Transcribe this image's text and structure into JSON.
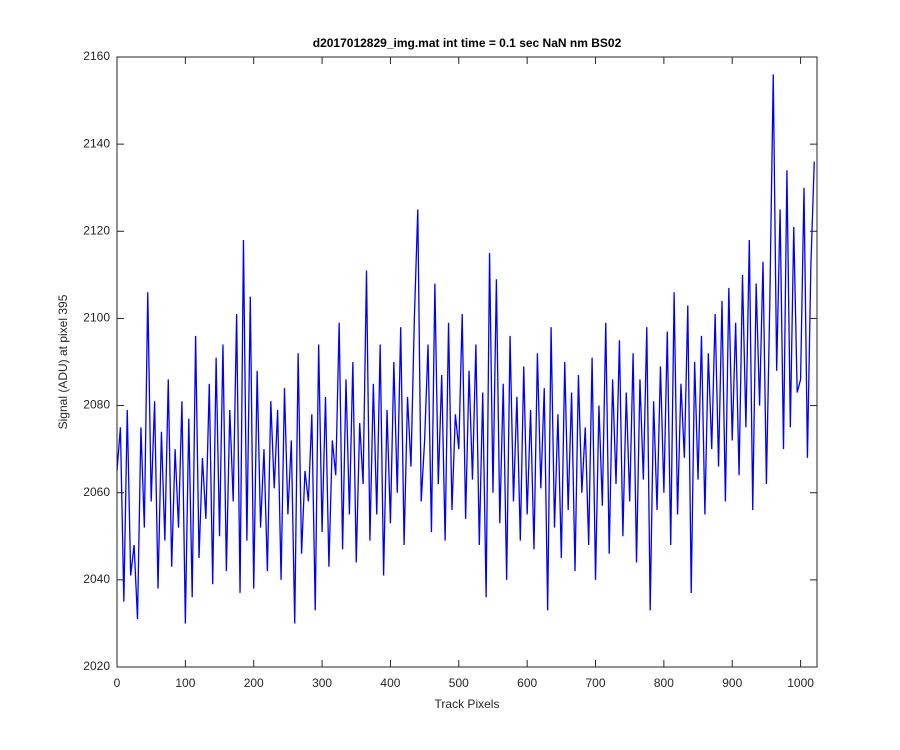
{
  "chart_data": {
    "type": "line",
    "title": "d2017012829_img.mat int time = 0.1 sec  NaN nm BS02",
    "x_label": "Track Pixels",
    "y_label": "Signal (ADU) at pixel 395",
    "xlim": [
      0,
      1024
    ],
    "ylim": [
      2020,
      2160
    ],
    "xticks": [
      0,
      100,
      200,
      300,
      400,
      500,
      600,
      700,
      800,
      900,
      1000
    ],
    "yticks": [
      2020,
      2040,
      2060,
      2080,
      2100,
      2120,
      2140,
      2160
    ],
    "grid": false,
    "x": [
      0,
      5,
      10,
      15,
      20,
      25,
      30,
      35,
      40,
      45,
      50,
      55,
      60,
      65,
      70,
      75,
      80,
      85,
      90,
      95,
      100,
      105,
      110,
      115,
      120,
      125,
      130,
      135,
      140,
      145,
      150,
      155,
      160,
      165,
      170,
      175,
      180,
      185,
      190,
      195,
      200,
      205,
      210,
      215,
      220,
      225,
      230,
      235,
      240,
      245,
      250,
      255,
      260,
      265,
      270,
      275,
      280,
      285,
      290,
      295,
      300,
      305,
      310,
      315,
      320,
      325,
      330,
      335,
      340,
      345,
      350,
      355,
      360,
      365,
      370,
      375,
      380,
      385,
      390,
      395,
      400,
      405,
      410,
      415,
      420,
      425,
      430,
      435,
      440,
      445,
      450,
      455,
      460,
      465,
      470,
      475,
      480,
      485,
      490,
      495,
      500,
      505,
      510,
      515,
      520,
      525,
      530,
      535,
      540,
      545,
      550,
      555,
      560,
      565,
      570,
      575,
      580,
      585,
      590,
      595,
      600,
      605,
      610,
      615,
      620,
      625,
      630,
      635,
      640,
      645,
      650,
      655,
      660,
      665,
      670,
      675,
      680,
      685,
      690,
      695,
      700,
      705,
      710,
      715,
      720,
      725,
      730,
      735,
      740,
      745,
      750,
      755,
      760,
      765,
      770,
      775,
      780,
      785,
      790,
      795,
      800,
      805,
      810,
      815,
      820,
      825,
      830,
      835,
      840,
      845,
      850,
      855,
      860,
      865,
      870,
      875,
      880,
      885,
      890,
      895,
      900,
      905,
      910,
      915,
      920,
      925,
      930,
      935,
      940,
      945,
      950,
      955,
      960,
      965,
      970,
      975,
      980,
      985,
      990,
      995,
      1000,
      1005,
      1010,
      1015,
      1020
    ],
    "series": [
      {
        "name": "signal",
        "color": "#0000ff",
        "values": [
          2065,
          2075,
          2035,
          2079,
          2041,
          2048,
          2031,
          2075,
          2052,
          2106,
          2058,
          2081,
          2038,
          2074,
          2049,
          2086,
          2043,
          2070,
          2052,
          2081,
          2030,
          2077,
          2036,
          2096,
          2045,
          2068,
          2054,
          2085,
          2039,
          2091,
          2050,
          2094,
          2042,
          2079,
          2058,
          2101,
          2037,
          2118,
          2049,
          2105,
          2038,
          2088,
          2052,
          2070,
          2042,
          2081,
          2061,
          2079,
          2040,
          2084,
          2055,
          2072,
          2030,
          2092,
          2046,
          2065,
          2058,
          2078,
          2033,
          2094,
          2051,
          2082,
          2043,
          2072,
          2064,
          2099,
          2047,
          2086,
          2055,
          2090,
          2044,
          2076,
          2062,
          2111,
          2049,
          2085,
          2055,
          2094,
          2041,
          2079,
          2053,
          2090,
          2060,
          2098,
          2048,
          2082,
          2066,
          2100,
          2125,
          2058,
          2072,
          2094,
          2051,
          2108,
          2062,
          2087,
          2049,
          2099,
          2056,
          2078,
          2070,
          2101,
          2054,
          2088,
          2063,
          2094,
          2048,
          2083,
          2036,
          2115,
          2060,
          2109,
          2053,
          2085,
          2040,
          2096,
          2058,
          2082,
          2049,
          2089,
          2055,
          2079,
          2047,
          2092,
          2061,
          2084,
          2033,
          2098,
          2052,
          2078,
          2045,
          2090,
          2056,
          2083,
          2042,
          2087,
          2060,
          2075,
          2048,
          2091,
          2040,
          2080,
          2057,
          2099,
          2046,
          2086,
          2062,
          2095,
          2050,
          2083,
          2058,
          2092,
          2044,
          2086,
          2063,
          2098,
          2033,
          2081,
          2056,
          2089,
          2060,
          2097,
          2048,
          2106,
          2055,
          2085,
          2068,
          2103,
          2037,
          2090,
          2063,
          2096,
          2055,
          2092,
          2070,
          2101,
          2066,
          2104,
          2058,
          2107,
          2072,
          2099,
          2064,
          2110,
          2075,
          2118,
          2056,
          2108,
          2080,
          2113,
          2062,
          2104,
          2156,
          2088,
          2125,
          2070,
          2134,
          2075,
          2121,
          2083,
          2086,
          2130,
          2068,
          2112,
          2136
        ]
      }
    ]
  }
}
